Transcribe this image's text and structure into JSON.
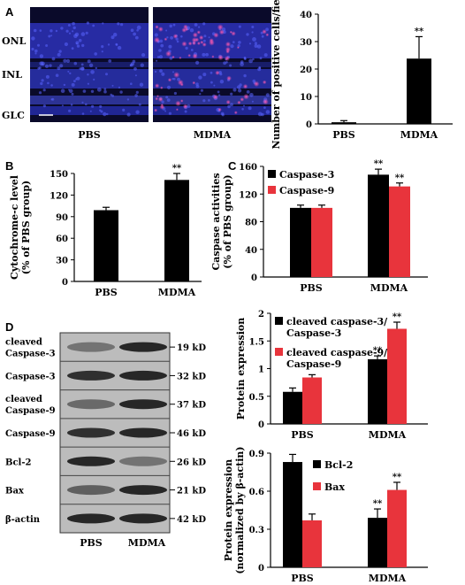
{
  "panel_labels": [
    "A",
    "B",
    "C",
    "D"
  ],
  "micrograph": {
    "layers": [
      "ONL",
      "INL",
      "GLC"
    ],
    "groups": [
      "PBS",
      "MDMA"
    ]
  },
  "blot": {
    "rows": [
      {
        "label_lines": [
          "cleaved",
          "Caspase-3"
        ],
        "kd": "19 kD"
      },
      {
        "label_lines": [
          "Caspase-3"
        ],
        "kd": "32 kD"
      },
      {
        "label_lines": [
          "cleaved",
          "Caspase-9"
        ],
        "kd": "37 kD"
      },
      {
        "label_lines": [
          "Caspase-9"
        ],
        "kd": "46 kD"
      },
      {
        "label_lines": [
          "Bcl-2"
        ],
        "kd": "26 kD"
      },
      {
        "label_lines": [
          "Bax"
        ],
        "kd": "21 kD"
      },
      {
        "label_lines": [
          "β-actin"
        ],
        "kd": "42 kD"
      }
    ],
    "lanes": [
      "PBS",
      "MDMA"
    ],
    "band_intensity": [
      [
        0.45,
        0.85
      ],
      [
        0.8,
        0.85
      ],
      [
        0.5,
        0.85
      ],
      [
        0.8,
        0.85
      ],
      [
        0.85,
        0.45
      ],
      [
        0.55,
        0.85
      ],
      [
        0.85,
        0.85
      ]
    ]
  },
  "colors": {
    "black_series": "#000000",
    "red_series": "#e8343c"
  },
  "chart_data": [
    {
      "id": "A",
      "type": "bar",
      "categories": [
        "PBS",
        "MDMA"
      ],
      "series": [
        {
          "values": [
            0.6,
            23.8
          ],
          "errors": [
            0.6,
            8
          ],
          "color": "#000000"
        }
      ],
      "significance": [
        "",
        "**"
      ],
      "ylabel": "Number of positive cells/field",
      "ylim": [
        0,
        40
      ],
      "yticks": [
        0,
        10,
        20,
        30,
        40
      ]
    },
    {
      "id": "B",
      "type": "bar",
      "categories": [
        "PBS",
        "MDMA"
      ],
      "series": [
        {
          "values": [
            99,
            141
          ],
          "errors": [
            4,
            9
          ],
          "color": "#000000"
        }
      ],
      "significance": [
        "",
        "**"
      ],
      "ylabel_lines": [
        "Cytochrome-c level",
        "(% of PBS group)"
      ],
      "ylim": [
        0,
        150
      ],
      "yticks": [
        0,
        30,
        60,
        90,
        120,
        150
      ]
    },
    {
      "id": "C",
      "type": "bar",
      "categories": [
        "PBS",
        "MDMA"
      ],
      "series": [
        {
          "name": "Caspase-3",
          "values": [
            100,
            148
          ],
          "errors": [
            4,
            8
          ],
          "color": "#000000"
        },
        {
          "name": "Caspase-9",
          "values": [
            100,
            131
          ],
          "errors": [
            4,
            5
          ],
          "color": "#e8343c"
        }
      ],
      "significance": [
        [
          "",
          ""
        ],
        [
          "**",
          "**"
        ]
      ],
      "ylabel_lines": [
        "Caspase activities",
        "(% of PBS group)"
      ],
      "ylim": [
        0,
        160
      ],
      "yticks": [
        0,
        40,
        80,
        120,
        160
      ],
      "legend_position": "top-left"
    },
    {
      "id": "D1",
      "type": "bar",
      "categories": [
        "PBS",
        "MDMA"
      ],
      "series": [
        {
          "name_lines": [
            "cleaved caspase-3/",
            "Caspase-3"
          ],
          "values": [
            0.58,
            1.17
          ],
          "errors": [
            0.07,
            0.06
          ],
          "color": "#000000"
        },
        {
          "name_lines": [
            "cleaved caspase-9/",
            "Caspase-9"
          ],
          "values": [
            0.84,
            1.72
          ],
          "errors": [
            0.05,
            0.12
          ],
          "color": "#e8343c"
        }
      ],
      "significance": [
        [
          "",
          ""
        ],
        [
          "**",
          "**"
        ]
      ],
      "ylabel": "Protein expression",
      "ylim": [
        0,
        2
      ],
      "yticks": [
        0,
        0.5,
        1,
        1.5,
        2
      ],
      "ytick_labels": [
        "0",
        "0.5",
        "1",
        "1.5",
        "2"
      ],
      "legend_position": "top-left"
    },
    {
      "id": "D2",
      "type": "bar",
      "categories": [
        "PBS",
        "MDMA"
      ],
      "series": [
        {
          "name": "Bcl-2",
          "values": [
            0.83,
            0.39
          ],
          "errors": [
            0.06,
            0.07
          ],
          "color": "#000000"
        },
        {
          "name": "Bax",
          "values": [
            0.37,
            0.61
          ],
          "errors": [
            0.05,
            0.06
          ],
          "color": "#e8343c"
        }
      ],
      "significance": [
        [
          "",
          ""
        ],
        [
          "**",
          "**"
        ]
      ],
      "ylabel_lines": [
        "Protein expression",
        "(normalized by β-actin)"
      ],
      "ylim": [
        0,
        0.9
      ],
      "yticks": [
        0,
        0.3,
        0.6,
        0.9
      ],
      "ytick_labels": [
        "0",
        "0.3",
        "0.6",
        "0.9"
      ],
      "legend_position": "top-right"
    }
  ]
}
